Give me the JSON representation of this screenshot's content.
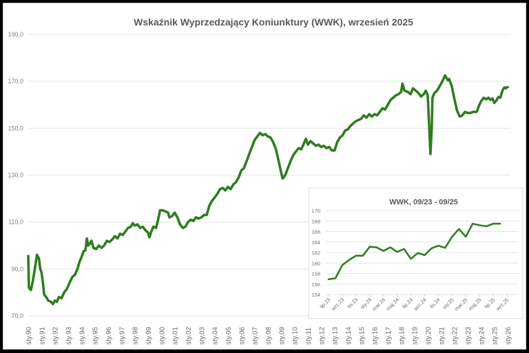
{
  "chart_data": [
    {
      "id": "main",
      "type": "line",
      "title": "Wskaźnik Wyprzedzający Koniunktury (WWK), wrzesień 2025",
      "xlabel": "",
      "ylabel": "",
      "ylim": [
        70,
        190
      ],
      "yticks": [
        "70,0",
        "90,0",
        "110,0",
        "130,0",
        "150,0",
        "170,0",
        "190,0"
      ],
      "ytick_values": [
        70,
        90,
        110,
        130,
        150,
        170,
        190
      ],
      "grid": true,
      "legend": "none",
      "color": "#2e7d1f",
      "xticks": [
        "sty.90",
        "sty.91",
        "sty.92",
        "sty.93",
        "sty.94",
        "sty.95",
        "sty.96",
        "sty.97",
        "sty.98",
        "sty.99",
        "sty.00",
        "sty.01",
        "sty.02",
        "sty.03",
        "sty.04",
        "sty.05",
        "sty.06",
        "sty.07",
        "sty.08",
        "sty.09",
        "sty.10",
        "sty.11",
        "sty.12",
        "sty.13",
        "sty.14",
        "sty.15",
        "sty.16",
        "sty.17",
        "sty.18",
        "sty.19",
        "sty.20",
        "sty.21",
        "sty.22",
        "sty.23",
        "sty.24",
        "sty.25",
        "sty.26"
      ],
      "series": [
        {
          "name": "WWK",
          "points": [
            [
              1990.0,
              95.5
            ],
            [
              1990.05,
              82.0
            ],
            [
              1990.2,
              81.0
            ],
            [
              1990.35,
              85.0
            ],
            [
              1990.55,
              92.0
            ],
            [
              1990.65,
              96.0
            ],
            [
              1990.8,
              94.5
            ],
            [
              1990.9,
              90.0
            ],
            [
              1991.0,
              88.5
            ],
            [
              1991.1,
              84.0
            ],
            [
              1991.2,
              79.0
            ],
            [
              1991.35,
              78.0
            ],
            [
              1991.5,
              76.5
            ],
            [
              1991.7,
              76.0
            ],
            [
              1991.85,
              75.0
            ],
            [
              1992.0,
              76.5
            ],
            [
              1992.15,
              76.0
            ],
            [
              1992.3,
              78.0
            ],
            [
              1992.5,
              77.5
            ],
            [
              1992.7,
              80.0
            ],
            [
              1992.9,
              81.5
            ],
            [
              1993.1,
              84.0
            ],
            [
              1993.3,
              86.5
            ],
            [
              1993.5,
              87.5
            ],
            [
              1993.7,
              90.0
            ],
            [
              1993.85,
              93.0
            ],
            [
              1994.0,
              95.0
            ],
            [
              1994.15,
              97.5
            ],
            [
              1994.3,
              98.0
            ],
            [
              1994.4,
              103.0
            ],
            [
              1994.5,
              100.0
            ],
            [
              1994.6,
              100.5
            ],
            [
              1994.75,
              102.0
            ],
            [
              1994.9,
              99.0
            ],
            [
              1995.1,
              98.5
            ],
            [
              1995.3,
              100.0
            ],
            [
              1995.5,
              99.0
            ],
            [
              1995.7,
              100.0
            ],
            [
              1995.9,
              102.0
            ],
            [
              1996.1,
              101.5
            ],
            [
              1996.3,
              102.5
            ],
            [
              1996.5,
              104.0
            ],
            [
              1996.7,
              103.0
            ],
            [
              1996.9,
              105.0
            ],
            [
              1997.1,
              104.5
            ],
            [
              1997.3,
              106.0
            ],
            [
              1997.5,
              107.5
            ],
            [
              1997.7,
              108.0
            ],
            [
              1997.85,
              109.5
            ],
            [
              1998.0,
              108.5
            ],
            [
              1998.2,
              109.0
            ],
            [
              1998.4,
              107.5
            ],
            [
              1998.6,
              108.0
            ],
            [
              1998.8,
              106.5
            ],
            [
              1999.0,
              105.5
            ],
            [
              1999.1,
              103.5
            ],
            [
              1999.25,
              106.0
            ],
            [
              1999.4,
              108.0
            ],
            [
              1999.6,
              107.5
            ],
            [
              1999.75,
              111.0
            ],
            [
              1999.9,
              115.0
            ],
            [
              2000.1,
              115.0
            ],
            [
              2000.3,
              114.5
            ],
            [
              2000.5,
              114.0
            ],
            [
              2000.6,
              112.0
            ],
            [
              2000.8,
              112.5
            ],
            [
              2001.0,
              114.0
            ],
            [
              2001.2,
              112.0
            ],
            [
              2001.4,
              109.0
            ],
            [
              2001.6,
              107.5
            ],
            [
              2001.8,
              108.0
            ],
            [
              2002.0,
              110.0
            ],
            [
              2002.2,
              111.0
            ],
            [
              2002.4,
              110.5
            ],
            [
              2002.6,
              112.0
            ],
            [
              2002.8,
              111.5
            ],
            [
              2003.0,
              112.0
            ],
            [
              2003.2,
              113.0
            ],
            [
              2003.4,
              113.0
            ],
            [
              2003.6,
              117.0
            ],
            [
              2003.8,
              119.0
            ],
            [
              2004.0,
              120.5
            ],
            [
              2004.2,
              122.0
            ],
            [
              2004.4,
              124.0
            ],
            [
              2004.6,
              124.5
            ],
            [
              2004.8,
              123.5
            ],
            [
              2005.0,
              125.0
            ],
            [
              2005.2,
              124.0
            ],
            [
              2005.4,
              126.0
            ],
            [
              2005.6,
              127.0
            ],
            [
              2005.8,
              129.0
            ],
            [
              2006.0,
              132.0
            ],
            [
              2006.2,
              133.0
            ],
            [
              2006.4,
              136.0
            ],
            [
              2006.6,
              139.0
            ],
            [
              2006.8,
              142.0
            ],
            [
              2007.0,
              145.0
            ],
            [
              2007.2,
              146.5
            ],
            [
              2007.4,
              148.0
            ],
            [
              2007.6,
              147.0
            ],
            [
              2007.8,
              147.5
            ],
            [
              2008.0,
              146.5
            ],
            [
              2008.2,
              146.0
            ],
            [
              2008.4,
              144.0
            ],
            [
              2008.6,
              141.0
            ],
            [
              2008.8,
              136.0
            ],
            [
              2009.0,
              131.0
            ],
            [
              2009.1,
              128.5
            ],
            [
              2009.3,
              130.0
            ],
            [
              2009.5,
              133.0
            ],
            [
              2009.7,
              136.0
            ],
            [
              2009.9,
              138.5
            ],
            [
              2010.1,
              140.0
            ],
            [
              2010.3,
              141.5
            ],
            [
              2010.5,
              141.0
            ],
            [
              2010.7,
              143.5
            ],
            [
              2010.85,
              145.5
            ],
            [
              2011.0,
              143.0
            ],
            [
              2011.2,
              144.5
            ],
            [
              2011.4,
              143.5
            ],
            [
              2011.6,
              142.5
            ],
            [
              2011.8,
              143.0
            ],
            [
              2012.0,
              142.0
            ],
            [
              2012.2,
              142.5
            ],
            [
              2012.4,
              141.5
            ],
            [
              2012.6,
              142.0
            ],
            [
              2012.8,
              140.5
            ],
            [
              2013.0,
              140.5
            ],
            [
              2013.2,
              144.0
            ],
            [
              2013.4,
              146.0
            ],
            [
              2013.6,
              147.0
            ],
            [
              2013.8,
              149.0
            ],
            [
              2014.0,
              149.5
            ],
            [
              2014.2,
              151.0
            ],
            [
              2014.4,
              152.0
            ],
            [
              2014.6,
              153.0
            ],
            [
              2014.8,
              153.5
            ],
            [
              2015.0,
              154.0
            ],
            [
              2015.2,
              155.5
            ],
            [
              2015.4,
              154.5
            ],
            [
              2015.6,
              156.0
            ],
            [
              2015.8,
              155.0
            ],
            [
              2016.0,
              156.0
            ],
            [
              2016.2,
              155.5
            ],
            [
              2016.4,
              157.0
            ],
            [
              2016.6,
              158.5
            ],
            [
              2016.8,
              158.0
            ],
            [
              2017.0,
              160.0
            ],
            [
              2017.2,
              162.0
            ],
            [
              2017.4,
              163.0
            ],
            [
              2017.6,
              164.0
            ],
            [
              2017.8,
              164.5
            ],
            [
              2018.0,
              165.5
            ],
            [
              2018.1,
              169.0
            ],
            [
              2018.25,
              166.0
            ],
            [
              2018.5,
              165.5
            ],
            [
              2018.7,
              164.5
            ],
            [
              2018.9,
              167.0
            ],
            [
              2019.1,
              166.0
            ],
            [
              2019.3,
              165.0
            ],
            [
              2019.5,
              163.5
            ],
            [
              2019.7,
              164.5
            ],
            [
              2019.85,
              166.0
            ],
            [
              2020.0,
              164.0
            ],
            [
              2020.1,
              152.0
            ],
            [
              2020.2,
              139.0
            ],
            [
              2020.3,
              150.0
            ],
            [
              2020.35,
              163.0
            ],
            [
              2020.5,
              165.0
            ],
            [
              2020.7,
              166.0
            ],
            [
              2020.9,
              168.0
            ],
            [
              2021.1,
              170.0
            ],
            [
              2021.3,
              172.5
            ],
            [
              2021.5,
              170.5
            ],
            [
              2021.6,
              171.0
            ],
            [
              2021.8,
              168.0
            ],
            [
              2022.0,
              162.5
            ],
            [
              2022.2,
              157.5
            ],
            [
              2022.4,
              155.0
            ],
            [
              2022.6,
              155.5
            ],
            [
              2022.8,
              157.0
            ],
            [
              2023.0,
              156.5
            ],
            [
              2023.2,
              156.5
            ],
            [
              2023.4,
              157.0
            ],
            [
              2023.6,
              156.9
            ],
            [
              2023.7,
              157.1
            ],
            [
              2023.85,
              159.7
            ],
            [
              2024.0,
              161.4
            ],
            [
              2024.2,
              163.0
            ],
            [
              2024.4,
              162.3
            ],
            [
              2024.55,
              163.0
            ],
            [
              2024.7,
              162.1
            ],
            [
              2024.85,
              162.7
            ],
            [
              2025.0,
              160.8
            ],
            [
              2025.15,
              161.8
            ],
            [
              2025.3,
              163.3
            ],
            [
              2025.45,
              163.0
            ],
            [
              2025.55,
              165.0
            ],
            [
              2025.65,
              166.5
            ],
            [
              2025.75,
              167.4
            ],
            [
              2025.85,
              167.0
            ],
            [
              2025.95,
              167.5
            ],
            [
              2026.0,
              167.5
            ]
          ]
        }
      ]
    },
    {
      "id": "inset",
      "type": "line",
      "title": "WWK, 09/23 - 09/25",
      "xlabel": "",
      "ylabel": "",
      "ylim": [
        154,
        170
      ],
      "yticks": [
        "154",
        "156",
        "158",
        "160",
        "162",
        "164",
        "166",
        "168",
        "170"
      ],
      "ytick_values": [
        154,
        156,
        158,
        160,
        162,
        164,
        166,
        168,
        170
      ],
      "grid": true,
      "legend": "none",
      "color": "#2e7d1f",
      "categories": [
        "lip.23",
        "sie.23",
        "wrz.23",
        "paź.23",
        "lis.23",
        "gru.23",
        "sty.24",
        "lut.24",
        "mar.24",
        "kwi.24",
        "maj.24",
        "cze.24",
        "lip.24",
        "sie.24",
        "wrz.24",
        "paź.24",
        "lis.24",
        "gru.24",
        "sty.25",
        "lut.25",
        "mar.25",
        "kwi.25",
        "maj.25",
        "cze.25",
        "lip.25",
        "sie.25",
        "wrz.25"
      ],
      "xtick_labels": [
        "lip.23",
        "wrz.23",
        "lis.23",
        "sty.24",
        "mar.24",
        "maj.24",
        "lip.24",
        "wrz.24",
        "lis.24",
        "sty.25",
        "mar.25",
        "maj.25",
        "lip.25",
        "wrz.25"
      ],
      "series": [
        {
          "name": "WWK",
          "values": [
            156.9,
            157.1,
            159.6,
            160.6,
            161.4,
            161.4,
            163.1,
            163.0,
            162.3,
            163.0,
            162.1,
            162.7,
            160.8,
            161.9,
            161.5,
            162.8,
            163.3,
            162.9,
            165.0,
            166.5,
            165.0,
            167.5,
            167.2,
            167.0,
            167.5,
            167.5,
            null
          ]
        }
      ]
    }
  ]
}
